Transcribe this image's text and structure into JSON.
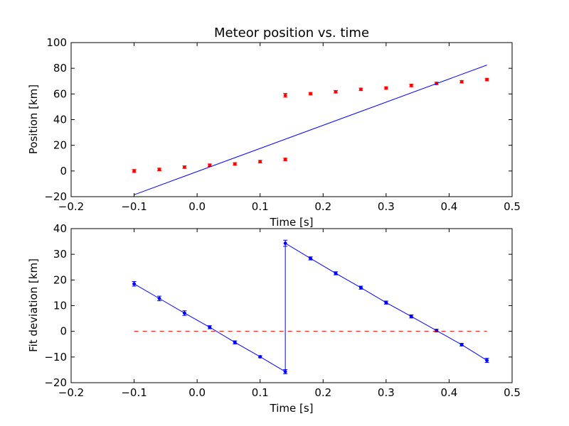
{
  "chart_data": [
    {
      "type": "scatter",
      "title": "Meteor position vs. time",
      "xlabel": "Time [s]",
      "ylabel": "Position [km]",
      "xlim": [
        -0.2,
        0.5
      ],
      "ylim": [
        -20,
        100
      ],
      "xticks": [
        "−0.2",
        "−0.1",
        "0.0",
        "0.1",
        "0.2",
        "0.3",
        "0.4",
        "0.5"
      ],
      "yticks": [
        "−20",
        "0",
        "20",
        "40",
        "60",
        "80",
        "100"
      ],
      "grid": false,
      "series": [
        {
          "style": "red-errorbar-points",
          "color": "#ff0000",
          "x": [
            -0.1,
            -0.06,
            -0.02,
            0.02,
            0.06,
            0.1,
            0.14,
            0.14,
            0.18,
            0.22,
            0.26,
            0.3,
            0.34,
            0.38,
            0.42,
            0.46
          ],
          "y": [
            0,
            1.2,
            3,
            4.5,
            5.5,
            7.3,
            9,
            59,
            60.2,
            61.7,
            63.6,
            64.6,
            66.6,
            68.2,
            69.5,
            71.2
          ],
          "yerr": [
            1.2,
            1.0,
            1.0,
            1.0,
            1.0,
            1.0,
            1.0,
            1.5,
            1.0,
            1.0,
            1.0,
            1.0,
            1.0,
            1.0,
            1.0,
            1.0
          ]
        },
        {
          "style": "blue-fit-line",
          "color": "#0000ff",
          "x": [
            -0.1,
            0.46
          ],
          "y": [
            -18.5,
            82.5
          ]
        }
      ]
    },
    {
      "type": "line",
      "title": "",
      "xlabel": "Time [s]",
      "ylabel": "Fit deviation [km]",
      "xlim": [
        -0.2,
        0.5
      ],
      "ylim": [
        -20,
        40
      ],
      "xticks": [
        "−0.2",
        "−0.1",
        "0.0",
        "0.1",
        "0.2",
        "0.3",
        "0.4",
        "0.5"
      ],
      "yticks": [
        "−20",
        "−10",
        "0",
        "10",
        "20",
        "30",
        "40"
      ],
      "grid": false,
      "series": [
        {
          "style": "blue-errorbar-line",
          "color": "#0000ff",
          "x": [
            -0.1,
            -0.06,
            -0.02,
            0.02,
            0.06,
            0.1,
            0.14,
            0.14,
            0.18,
            0.22,
            0.26,
            0.3,
            0.34,
            0.38,
            0.42,
            0.46
          ],
          "y": [
            18.5,
            12.8,
            7.1,
            1.6,
            -4.3,
            -9.9,
            -15.7,
            34.3,
            28.4,
            22.6,
            17.0,
            11.2,
            5.8,
            0.3,
            -5.2,
            -11.3
          ],
          "yerr": [
            0.9,
            0.9,
            0.9,
            0.6,
            0.6,
            0.4,
            0.8,
            1.2,
            0.6,
            0.6,
            0.6,
            0.6,
            0.6,
            0.5,
            0.5,
            0.8
          ]
        },
        {
          "style": "red-dashed-zero",
          "color": "#ff0000",
          "x": [
            -0.1,
            0.46
          ],
          "y": [
            0,
            0
          ]
        }
      ]
    }
  ]
}
